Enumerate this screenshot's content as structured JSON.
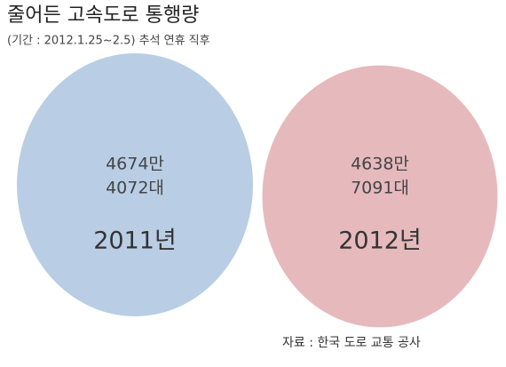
{
  "chart_data": {
    "type": "bubble",
    "title": "줄어든 고속도로 통행량",
    "subtitle": "(기간 : 2012.1.25~2.5) 추석 연휴 직후",
    "source": "자료 : 한국 도로 교통 공사",
    "categories": [
      "2011년",
      "2012년"
    ],
    "values": [
      46744072,
      46387091
    ],
    "value_labels": [
      [
        "4674만",
        "4072대"
      ],
      [
        "4638만",
        "7091대"
      ]
    ],
    "colors": [
      "#b9cee5",
      "#e6babd"
    ]
  }
}
